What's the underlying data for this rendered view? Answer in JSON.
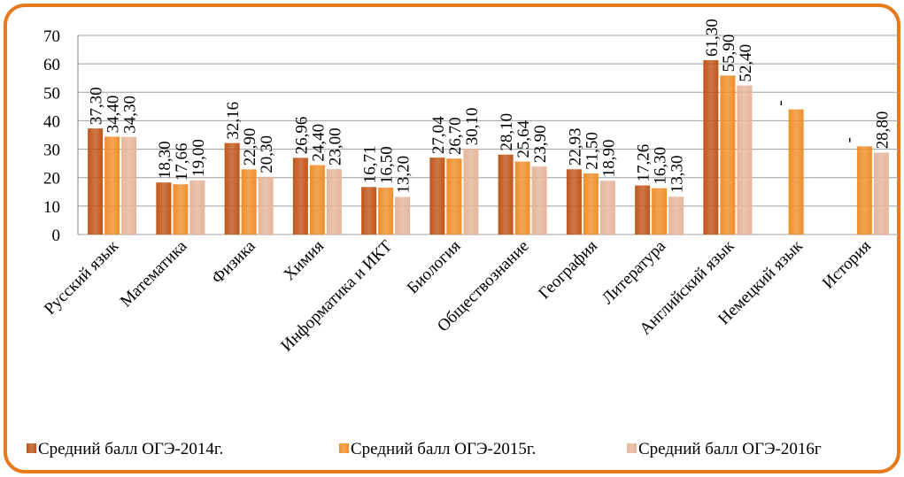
{
  "chart_data": {
    "type": "bar",
    "categories": [
      "Русский язык",
      "Математика",
      "Физика",
      "Химия",
      "Информатика и ИКТ",
      "Биология",
      "Обществознание",
      "География",
      "Литература",
      "Английский язык",
      "Немецкий язык",
      "История"
    ],
    "series": [
      {
        "name": "Средний балл ОГЭ-2014г.",
        "color": "#c0561a",
        "values": [
          37.3,
          18.3,
          32.16,
          26.96,
          16.71,
          27.04,
          28.1,
          22.93,
          17.26,
          61.3,
          null,
          null
        ],
        "value_labels": [
          "37,30",
          "18,30",
          "32,16",
          "26,96",
          "16,71",
          "27,04",
          "28,10",
          "22,93",
          "17,26",
          "61,30",
          "-",
          "-"
        ]
      },
      {
        "name": "Средний балл ОГЭ-2015г.",
        "color": "#ef8f2a",
        "values": [
          34.4,
          17.66,
          22.9,
          24.4,
          16.5,
          26.7,
          25.64,
          21.5,
          16.3,
          55.9,
          44,
          31
        ],
        "value_labels": [
          "34,40",
          "17,66",
          "22,90",
          "24,40",
          "16,50",
          "26,70",
          "25,64",
          "21,50",
          "16,30",
          "55,90",
          null,
          null
        ]
      },
      {
        "name": "Средний балл ОГЭ-2016г",
        "color": "#e6b59b",
        "values": [
          34.3,
          19.0,
          20.3,
          23.0,
          13.2,
          30.1,
          23.9,
          18.9,
          13.3,
          52.4,
          null,
          28.8
        ],
        "value_labels": [
          "34,30",
          "19,00",
          "20,30",
          "23,00",
          "13,20",
          "30,10",
          "23,90",
          "18,90",
          "13,30",
          "52,40",
          null,
          "28,80"
        ]
      }
    ],
    "ylim": [
      0,
      70
    ],
    "yticks": [
      0,
      10,
      20,
      30,
      40,
      50,
      60,
      70
    ],
    "grid": true,
    "legend": "bottom"
  }
}
